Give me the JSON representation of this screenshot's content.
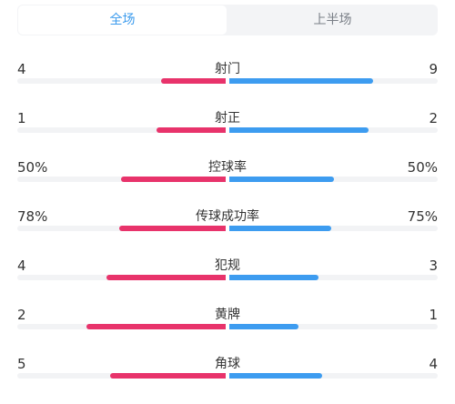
{
  "tabs": {
    "full_match": "全场",
    "first_half": "上半场"
  },
  "colors": {
    "home": "#e8336b",
    "away": "#3d9cf0",
    "active_tab": "#3b9bed"
  },
  "stats": [
    {
      "label": "射门",
      "home": "4",
      "away": "9",
      "home_fraction": 0.308,
      "away_fraction": 0.692
    },
    {
      "label": "射正",
      "home": "1",
      "away": "2",
      "home_fraction": 0.333,
      "away_fraction": 0.667
    },
    {
      "label": "控球率",
      "home": "50%",
      "away": "50%",
      "home_fraction": 0.5,
      "away_fraction": 0.5
    },
    {
      "label": "传球成功率",
      "home": "78%",
      "away": "75%",
      "home_fraction": 0.51,
      "away_fraction": 0.49
    },
    {
      "label": "犯规",
      "home": "4",
      "away": "3",
      "home_fraction": 0.571,
      "away_fraction": 0.429
    },
    {
      "label": "黄牌",
      "home": "2",
      "away": "1",
      "home_fraction": 0.667,
      "away_fraction": 0.333
    },
    {
      "label": "角球",
      "home": "5",
      "away": "4",
      "home_fraction": 0.556,
      "away_fraction": 0.444
    }
  ]
}
